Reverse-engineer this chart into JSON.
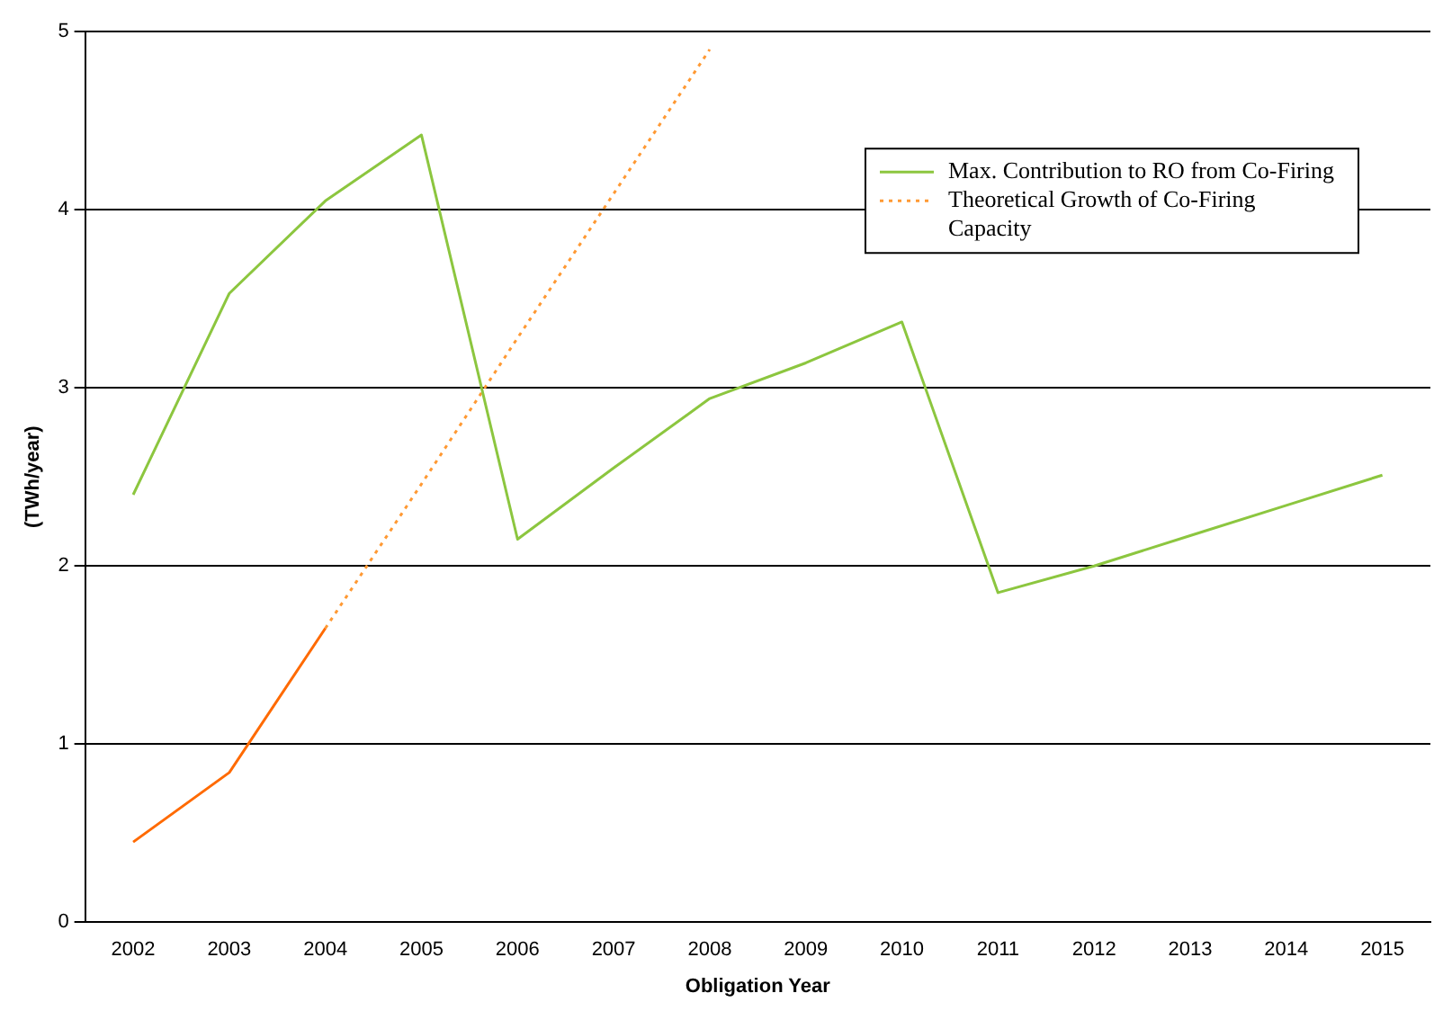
{
  "chart_data": {
    "type": "line",
    "xlabel": "Obligation Year",
    "ylabel": "(TWh/year)",
    "categories": [
      "2002",
      "2003",
      "2004",
      "2005",
      "2006",
      "2007",
      "2008",
      "2009",
      "2010",
      "2011",
      "2012",
      "2013",
      "2014",
      "2015"
    ],
    "series": [
      {
        "name": "Max. Contribution to RO from Co-Firing",
        "color": "#8cc63f",
        "values": [
          2.4,
          3.53,
          4.05,
          4.42,
          2.15,
          2.55,
          2.94,
          3.14,
          3.37,
          1.85,
          2.0,
          2.17,
          2.34,
          2.51
        ]
      },
      {
        "color": "#ff6a00",
        "values": [
          0.45,
          0.84,
          1.65,
          null,
          null,
          null,
          null,
          null,
          null,
          null,
          null,
          null,
          null,
          null
        ]
      },
      {
        "name": "Theoretical Growth of Co-Firing Capacity",
        "color": "#ff9933",
        "line_style": "dotted",
        "values": [
          null,
          null,
          1.65,
          2.46,
          3.28,
          4.09,
          4.9,
          null,
          null,
          null,
          null,
          null,
          null,
          null
        ]
      }
    ],
    "ylim": [
      0,
      5
    ],
    "yticks": [
      0,
      1,
      2,
      3,
      4,
      5
    ],
    "grid": "y",
    "legend": "top right",
    "marker": "none"
  }
}
